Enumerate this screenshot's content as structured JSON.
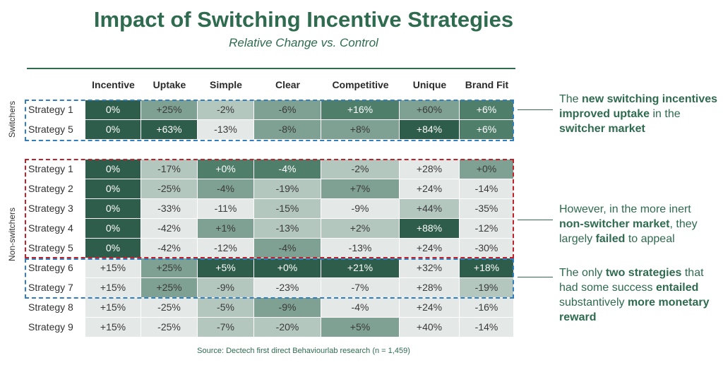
{
  "title": "Impact of Switching Incentive Strategies",
  "subtitle": "Relative Change vs. Control",
  "source": "Source: Dectech first direct Behaviourlab research (n = 1,459)",
  "chart_data": {
    "type": "heatmap",
    "title": "Impact of Switching Incentive Strategies",
    "subtitle": "Relative Change vs. Control",
    "columns": [
      "Incentive",
      "Uptake",
      "Simple",
      "Clear",
      "Competitive",
      "Unique",
      "Brand Fit"
    ],
    "groups": [
      {
        "name": "Switchers",
        "rows": [
          {
            "label": "Strategy 1",
            "values": [
              "0%",
              "+25%",
              "-2%",
              "-6%",
              "+16%",
              "+60%",
              "+6%"
            ]
          },
          {
            "label": "Strategy 5",
            "values": [
              "0%",
              "+63%",
              "-13%",
              "-8%",
              "+8%",
              "+84%",
              "+6%"
            ]
          }
        ]
      },
      {
        "name": "Non-switchers",
        "rows": [
          {
            "label": "Strategy 1",
            "values": [
              "0%",
              "-17%",
              "+0%",
              "-4%",
              "-2%",
              "+28%",
              "+0%"
            ]
          },
          {
            "label": "Strategy 2",
            "values": [
              "0%",
              "-25%",
              "-4%",
              "-19%",
              "+7%",
              "+24%",
              "-14%"
            ]
          },
          {
            "label": "Strategy 3",
            "values": [
              "0%",
              "-33%",
              "-11%",
              "-15%",
              "-9%",
              "+44%",
              "-35%"
            ]
          },
          {
            "label": "Strategy 4",
            "values": [
              "0%",
              "-42%",
              "+1%",
              "-13%",
              "+2%",
              "+88%",
              "-12%"
            ]
          },
          {
            "label": "Strategy 5",
            "values": [
              "0%",
              "-42%",
              "-12%",
              "-4%",
              "-13%",
              "+24%",
              "-30%"
            ]
          },
          {
            "label": "Strategy 6",
            "values": [
              "+15%",
              "+25%",
              "+5%",
              "+0%",
              "+21%",
              "+32%",
              "+18%"
            ]
          },
          {
            "label": "Strategy 7",
            "values": [
              "+15%",
              "+25%",
              "-9%",
              "-23%",
              "-7%",
              "+28%",
              "-19%"
            ]
          },
          {
            "label": "Strategy 8",
            "values": [
              "+15%",
              "-25%",
              "-5%",
              "-9%",
              "-4%",
              "+24%",
              "-16%"
            ]
          },
          {
            "label": "Strategy 9",
            "values": [
              "+15%",
              "-25%",
              "-7%",
              "-20%",
              "+5%",
              "+40%",
              "-14%"
            ]
          }
        ]
      }
    ],
    "shades": [
      [
        "darkest",
        "medium",
        "light",
        "medium",
        "dark",
        "medium",
        "dark"
      ],
      [
        "darkest",
        "darkest",
        "pale",
        "medium",
        "medium",
        "darkest",
        "dark"
      ],
      [
        "darkest",
        "light",
        "dark",
        "dark",
        "light",
        "pale",
        "medium"
      ],
      [
        "darkest",
        "light",
        "medium",
        "light",
        "medium",
        "pale",
        "pale"
      ],
      [
        "darkest",
        "pale",
        "pale",
        "light",
        "pale",
        "light",
        "pale"
      ],
      [
        "darkest",
        "pale",
        "medium",
        "light",
        "light",
        "darkest",
        "pale"
      ],
      [
        "darkest",
        "pale",
        "pale",
        "medium",
        "pale",
        "pale",
        "pale"
      ],
      [
        "pale",
        "medium",
        "darkest",
        "darkest",
        "darkest",
        "pale",
        "darkest"
      ],
      [
        "pale",
        "medium",
        "light",
        "pale",
        "pale",
        "pale",
        "light"
      ],
      [
        "pale",
        "pale",
        "light",
        "medium",
        "pale",
        "pale",
        "pale"
      ],
      [
        "pale",
        "pale",
        "light",
        "light",
        "medium",
        "pale",
        "pale"
      ]
    ]
  },
  "palette": {
    "darkest": "#2e5d4b",
    "dark": "#4f7e6a",
    "medium": "#7fa193",
    "light": "#b3c7bf",
    "pale": "#e4e9e7",
    "text_dark_bg": "#ffffff",
    "text_light_bg": "#3a3a3a",
    "accent": "#2e6b4f",
    "blue_dash": "#2f7fc0",
    "red_dash": "#c0202a"
  },
  "annotations": [
    {
      "parts": [
        {
          "text": "The ",
          "bold": false
        },
        {
          "text": "new switching incentives improved uptake",
          "bold": true
        },
        {
          "text": " in the ",
          "bold": false
        },
        {
          "text": "switcher market",
          "bold": true
        }
      ]
    },
    {
      "parts": [
        {
          "text": "However, in the more inert ",
          "bold": false
        },
        {
          "text": "non-switcher market",
          "bold": true
        },
        {
          "text": ", they largely ",
          "bold": false
        },
        {
          "text": "failed",
          "bold": true
        },
        {
          "text": " to appeal",
          "bold": false
        }
      ]
    },
    {
      "parts": [
        {
          "text": "The only ",
          "bold": false
        },
        {
          "text": "two strategies",
          "bold": true
        },
        {
          "text": " that had some success ",
          "bold": false
        },
        {
          "text": "entailed",
          "bold": true
        },
        {
          "text": " substantively ",
          "bold": false
        },
        {
          "text": "more monetary reward",
          "bold": true
        }
      ]
    }
  ]
}
